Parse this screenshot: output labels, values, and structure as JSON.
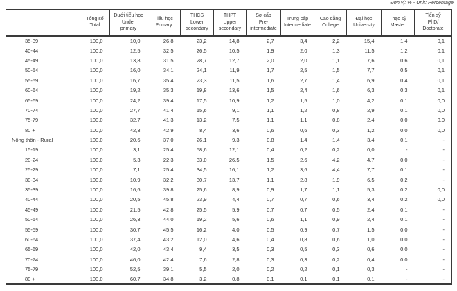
{
  "note": "Đơn vị: % - Unit: Percentage",
  "table": {
    "columns": [
      {
        "lines": [
          ""
        ]
      },
      {
        "lines": [
          "Tổng số",
          "Total"
        ]
      },
      {
        "lines": [
          "Dưới tiểu học",
          "Under",
          "primary"
        ]
      },
      {
        "lines": [
          "Tiểu học",
          "Primary"
        ]
      },
      {
        "lines": [
          "THCS",
          "Lower",
          "secondary"
        ]
      },
      {
        "lines": [
          "THPT",
          "Upper",
          "secondary"
        ]
      },
      {
        "lines": [
          "Sơ cấp",
          "Pre-",
          "intermediate"
        ]
      },
      {
        "lines": [
          "Trung cấp",
          "Intermediate"
        ]
      },
      {
        "lines": [
          "Cao đẳng",
          "College"
        ]
      },
      {
        "lines": [
          "Đại học",
          "University"
        ]
      },
      {
        "lines": [
          "Thạc sỹ",
          "Master"
        ]
      },
      {
        "lines": [
          "Tiến sỹ",
          "PhD/",
          "Doctorate"
        ]
      }
    ],
    "rows": [
      {
        "label": "35-39",
        "indent": true,
        "values": [
          "100,0",
          "10,0",
          "26,8",
          "23,2",
          "14,8",
          "2,7",
          "3,4",
          "2,2",
          "15,4",
          "1,4",
          "0,1"
        ]
      },
      {
        "label": "40-44",
        "indent": true,
        "values": [
          "100,0",
          "12,5",
          "32,5",
          "26,5",
          "10,5",
          "1,9",
          "2,0",
          "1,3",
          "11,5",
          "1,2",
          "0,1"
        ]
      },
      {
        "label": "45-49",
        "indent": true,
        "values": [
          "100,0",
          "13,8",
          "31,5",
          "28,7",
          "12,7",
          "2,0",
          "2,0",
          "1,1",
          "7,6",
          "0,6",
          "0,1"
        ]
      },
      {
        "label": "50-54",
        "indent": true,
        "values": [
          "100,0",
          "16,0",
          "34,1",
          "24,1",
          "11,9",
          "1,7",
          "2,5",
          "1,5",
          "7,7",
          "0,5",
          "0,1"
        ]
      },
      {
        "label": "55-59",
        "indent": true,
        "values": [
          "100,0",
          "16,7",
          "35,4",
          "23,3",
          "11,5",
          "1,6",
          "2,7",
          "1,4",
          "6,9",
          "0,4",
          "0,1"
        ]
      },
      {
        "label": "60-64",
        "indent": true,
        "values": [
          "100,0",
          "19,2",
          "35,3",
          "19,8",
          "13,6",
          "1,5",
          "2,4",
          "1,6",
          "6,3",
          "0,3",
          "0,1"
        ]
      },
      {
        "label": "65-69",
        "indent": true,
        "values": [
          "100,0",
          "24,2",
          "39,4",
          "17,5",
          "10,9",
          "1,2",
          "1,5",
          "1,0",
          "4,2",
          "0,1",
          "0,0"
        ]
      },
      {
        "label": "70-74",
        "indent": true,
        "values": [
          "100,0",
          "27,7",
          "41,4",
          "15,6",
          "9,1",
          "1,1",
          "1,2",
          "0,8",
          "2,9",
          "0,1",
          "0,0"
        ]
      },
      {
        "label": "75-79",
        "indent": true,
        "values": [
          "100,0",
          "32,7",
          "41,3",
          "13,2",
          "7,5",
          "1,1",
          "1,1",
          "0,8",
          "2,4",
          "0,0",
          "0,0"
        ]
      },
      {
        "label": "80 +",
        "indent": true,
        "values": [
          "100,0",
          "42,3",
          "42,9",
          "8,4",
          "3,6",
          "0,6",
          "0,6",
          "0,3",
          "1,2",
          "0,0",
          "0,0"
        ]
      },
      {
        "label": "Nông thôn - Rural",
        "indent": false,
        "values": [
          "100,0",
          "20,6",
          "37,0",
          "26,1",
          "9,3",
          "0,8",
          "1,4",
          "1,4",
          "3,4",
          "0,1",
          "-"
        ]
      },
      {
        "label": "15-19",
        "indent": true,
        "values": [
          "100,0",
          "3,1",
          "25,4",
          "58,6",
          "12,1",
          "0,4",
          "0,2",
          "0,2",
          "0,0",
          "-",
          "-"
        ]
      },
      {
        "label": "20-24",
        "indent": true,
        "values": [
          "100,0",
          "5,3",
          "22,3",
          "33,0",
          "26,5",
          "1,5",
          "2,6",
          "4,2",
          "4,7",
          "0,0",
          "-"
        ]
      },
      {
        "label": "25-29",
        "indent": true,
        "values": [
          "100,0",
          "7,1",
          "25,4",
          "34,5",
          "16,1",
          "1,2",
          "3,6",
          "4,4",
          "7,7",
          "0,1",
          "-"
        ]
      },
      {
        "label": "30-34",
        "indent": true,
        "values": [
          "100,0",
          "10,9",
          "32,2",
          "30,7",
          "13,7",
          "1,1",
          "2,8",
          "1,9",
          "6,5",
          "0,2",
          "-"
        ]
      },
      {
        "label": "35-39",
        "indent": true,
        "values": [
          "100,0",
          "16,6",
          "39,8",
          "25,6",
          "8,9",
          "0,9",
          "1,7",
          "1,1",
          "5,3",
          "0,2",
          "0,0"
        ]
      },
      {
        "label": "40-44",
        "indent": true,
        "values": [
          "100,0",
          "20,5",
          "45,8",
          "23,9",
          "4,4",
          "0,7",
          "0,7",
          "0,6",
          "3,4",
          "0,2",
          "0,0"
        ]
      },
      {
        "label": "45-49",
        "indent": true,
        "values": [
          "100,0",
          "21,5",
          "42,8",
          "25,5",
          "5,9",
          "0,7",
          "0,7",
          "0,5",
          "2,4",
          "0,1",
          "-"
        ]
      },
      {
        "label": "50-54",
        "indent": true,
        "values": [
          "100,0",
          "26,3",
          "44,0",
          "19,2",
          "5,6",
          "0,6",
          "1,1",
          "0,9",
          "2,4",
          "0,1",
          "-"
        ]
      },
      {
        "label": "55-59",
        "indent": true,
        "values": [
          "100,0",
          "30,7",
          "45,5",
          "16,2",
          "4,0",
          "0,5",
          "0,9",
          "0,7",
          "1,5",
          "0,0",
          "-"
        ]
      },
      {
        "label": "60-64",
        "indent": true,
        "values": [
          "100,0",
          "37,4",
          "43,2",
          "12,0",
          "4,6",
          "0,4",
          "0,8",
          "0,6",
          "1,0",
          "0,0",
          "-"
        ]
      },
      {
        "label": "65-69",
        "indent": true,
        "values": [
          "100,0",
          "42,0",
          "43,4",
          "9,4",
          "3,5",
          "0,3",
          "0,5",
          "0,3",
          "0,6",
          "0,0",
          "-"
        ]
      },
      {
        "label": "70-74",
        "indent": true,
        "values": [
          "100,0",
          "46,0",
          "42,4",
          "7,6",
          "2,8",
          "0,3",
          "0,3",
          "0,2",
          "0,4",
          "0,0",
          "-"
        ]
      },
      {
        "label": "75-79",
        "indent": true,
        "values": [
          "100,0",
          "52,5",
          "39,1",
          "5,5",
          "2,0",
          "0,2",
          "0,2",
          "0,1",
          "0,3",
          "-",
          "-"
        ]
      },
      {
        "label": "80 +",
        "indent": true,
        "values": [
          "100,0",
          "60,7",
          "34,8",
          "3,2",
          "0,8",
          "0,1",
          "0,1",
          "0,1",
          "0,1",
          "-",
          "-"
        ]
      }
    ]
  }
}
